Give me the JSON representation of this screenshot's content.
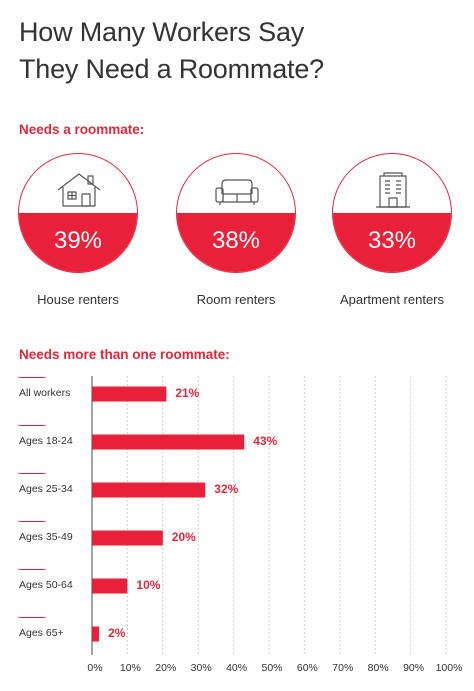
{
  "title": {
    "line1": "How Many Workers Say",
    "line2": "They Need a Roommate?"
  },
  "section1": {
    "label": "Needs a roommate:",
    "items": [
      {
        "icon": "house-icon",
        "value": 39,
        "pct_label": "39%",
        "label": "House renters"
      },
      {
        "icon": "sofa-icon",
        "value": 38,
        "pct_label": "38%",
        "label": "Room renters"
      },
      {
        "icon": "building-icon",
        "value": 33,
        "pct_label": "33%",
        "label": "Apartment renters"
      }
    ]
  },
  "section2": {
    "label": "Needs more than one roommate:"
  },
  "colors": {
    "accent": "#e8203a",
    "grid": "#cfcfcf"
  },
  "chart_data": {
    "type": "bar",
    "orientation": "horizontal",
    "categories": [
      "All workers",
      "Ages 18-24",
      "Ages 25-34",
      "Ages 35-49",
      "Ages 50-64",
      "Ages 65+"
    ],
    "values": [
      21,
      43,
      32,
      20,
      10,
      2
    ],
    "value_labels": [
      "21%",
      "43%",
      "32%",
      "20%",
      "10%",
      "2%"
    ],
    "xlim": [
      0,
      100
    ],
    "xticks": [
      "0%",
      "10%",
      "20%",
      "30%",
      "40%",
      "50%",
      "60%",
      "70%",
      "80%",
      "90%",
      "100%"
    ],
    "grid": true
  }
}
